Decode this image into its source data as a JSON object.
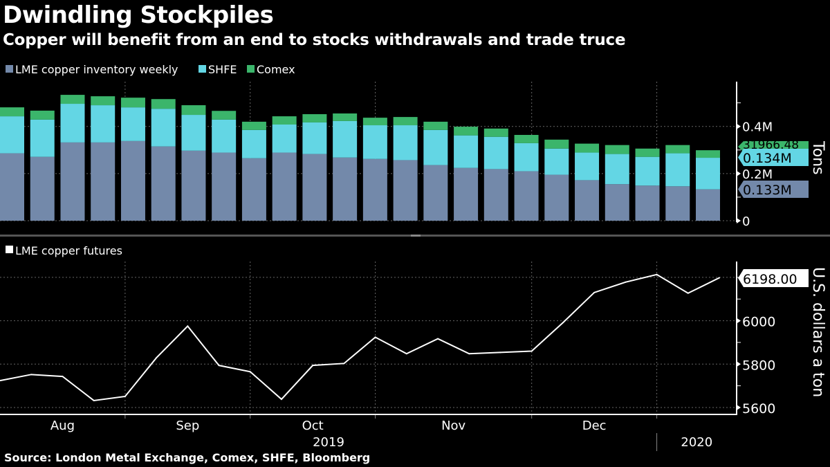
{
  "title": "Dwindling Stockpiles",
  "subtitle": "Copper will benefit from an end to stocks withdrawals and trade truce",
  "source": "Source: London Metal Exchange, Comex, SHFE, Bloomberg",
  "chart_data": [
    {
      "type": "bar",
      "stacked": true,
      "ylabel": "Tons",
      "ylim": [
        0,
        0.59
      ],
      "yticks": [
        {
          "v": 0,
          "label": "0"
        },
        {
          "v": 0.2,
          "label": "0.2M"
        },
        {
          "v": 0.4,
          "label": "0.4M"
        }
      ],
      "minor_yticks": [
        0.1,
        0.3,
        0.5
      ],
      "grid": true,
      "legend": "top-left",
      "x_month_boundaries": [
        4,
        8,
        12,
        17,
        21
      ],
      "series": [
        {
          "name": "LME copper inventory weekly",
          "color": "#7389aa",
          "values": [
            0.286,
            0.271,
            0.332,
            0.332,
            0.338,
            0.315,
            0.297,
            0.289,
            0.265,
            0.289,
            0.283,
            0.268,
            0.262,
            0.257,
            0.236,
            0.224,
            0.219,
            0.21,
            0.195,
            0.172,
            0.155,
            0.149,
            0.146,
            0.133
          ],
          "last_label": "0.133M"
        },
        {
          "name": "SHFE",
          "color": "#63d6e4",
          "values": [
            0.157,
            0.158,
            0.164,
            0.158,
            0.143,
            0.16,
            0.152,
            0.14,
            0.12,
            0.119,
            0.134,
            0.155,
            0.143,
            0.148,
            0.149,
            0.138,
            0.137,
            0.119,
            0.111,
            0.117,
            0.128,
            0.122,
            0.14,
            0.134
          ],
          "last_label": "0.134M"
        },
        {
          "name": "Comex",
          "color": "#3bb56b",
          "values": [
            0.038,
            0.038,
            0.038,
            0.038,
            0.041,
            0.041,
            0.041,
            0.037,
            0.035,
            0.035,
            0.035,
            0.032,
            0.032,
            0.035,
            0.035,
            0.037,
            0.035,
            0.035,
            0.038,
            0.038,
            0.038,
            0.035,
            0.035,
            0.032
          ],
          "last_label": "31966.48"
        }
      ]
    },
    {
      "type": "line",
      "ylabel": "U.S. dollars a ton",
      "ylim": [
        5568,
        6273
      ],
      "yticks": [
        5600,
        5800,
        6000
      ],
      "minor_yticks": [
        5700,
        5900,
        6100,
        6200
      ],
      "grid": true,
      "legend": "top-left",
      "x_tick_labels": [
        "Aug",
        "Sep",
        "Oct",
        "Nov",
        "Dec"
      ],
      "x_year_labels": [
        "2019",
        "2020"
      ],
      "x_month_boundaries": [
        4,
        8,
        12,
        17,
        21
      ],
      "series": [
        {
          "name": "LME copper futures",
          "color": "#ffffff",
          "values": [
            5724,
            5752,
            5743,
            5632,
            5651,
            5829,
            5975,
            5794,
            5765,
            5638,
            5794,
            5803,
            5924,
            5848,
            5917,
            5848,
            5854,
            5860,
            5991,
            6130,
            6178,
            6213,
            6127,
            6198
          ],
          "last_label": "6198.00"
        }
      ]
    }
  ]
}
